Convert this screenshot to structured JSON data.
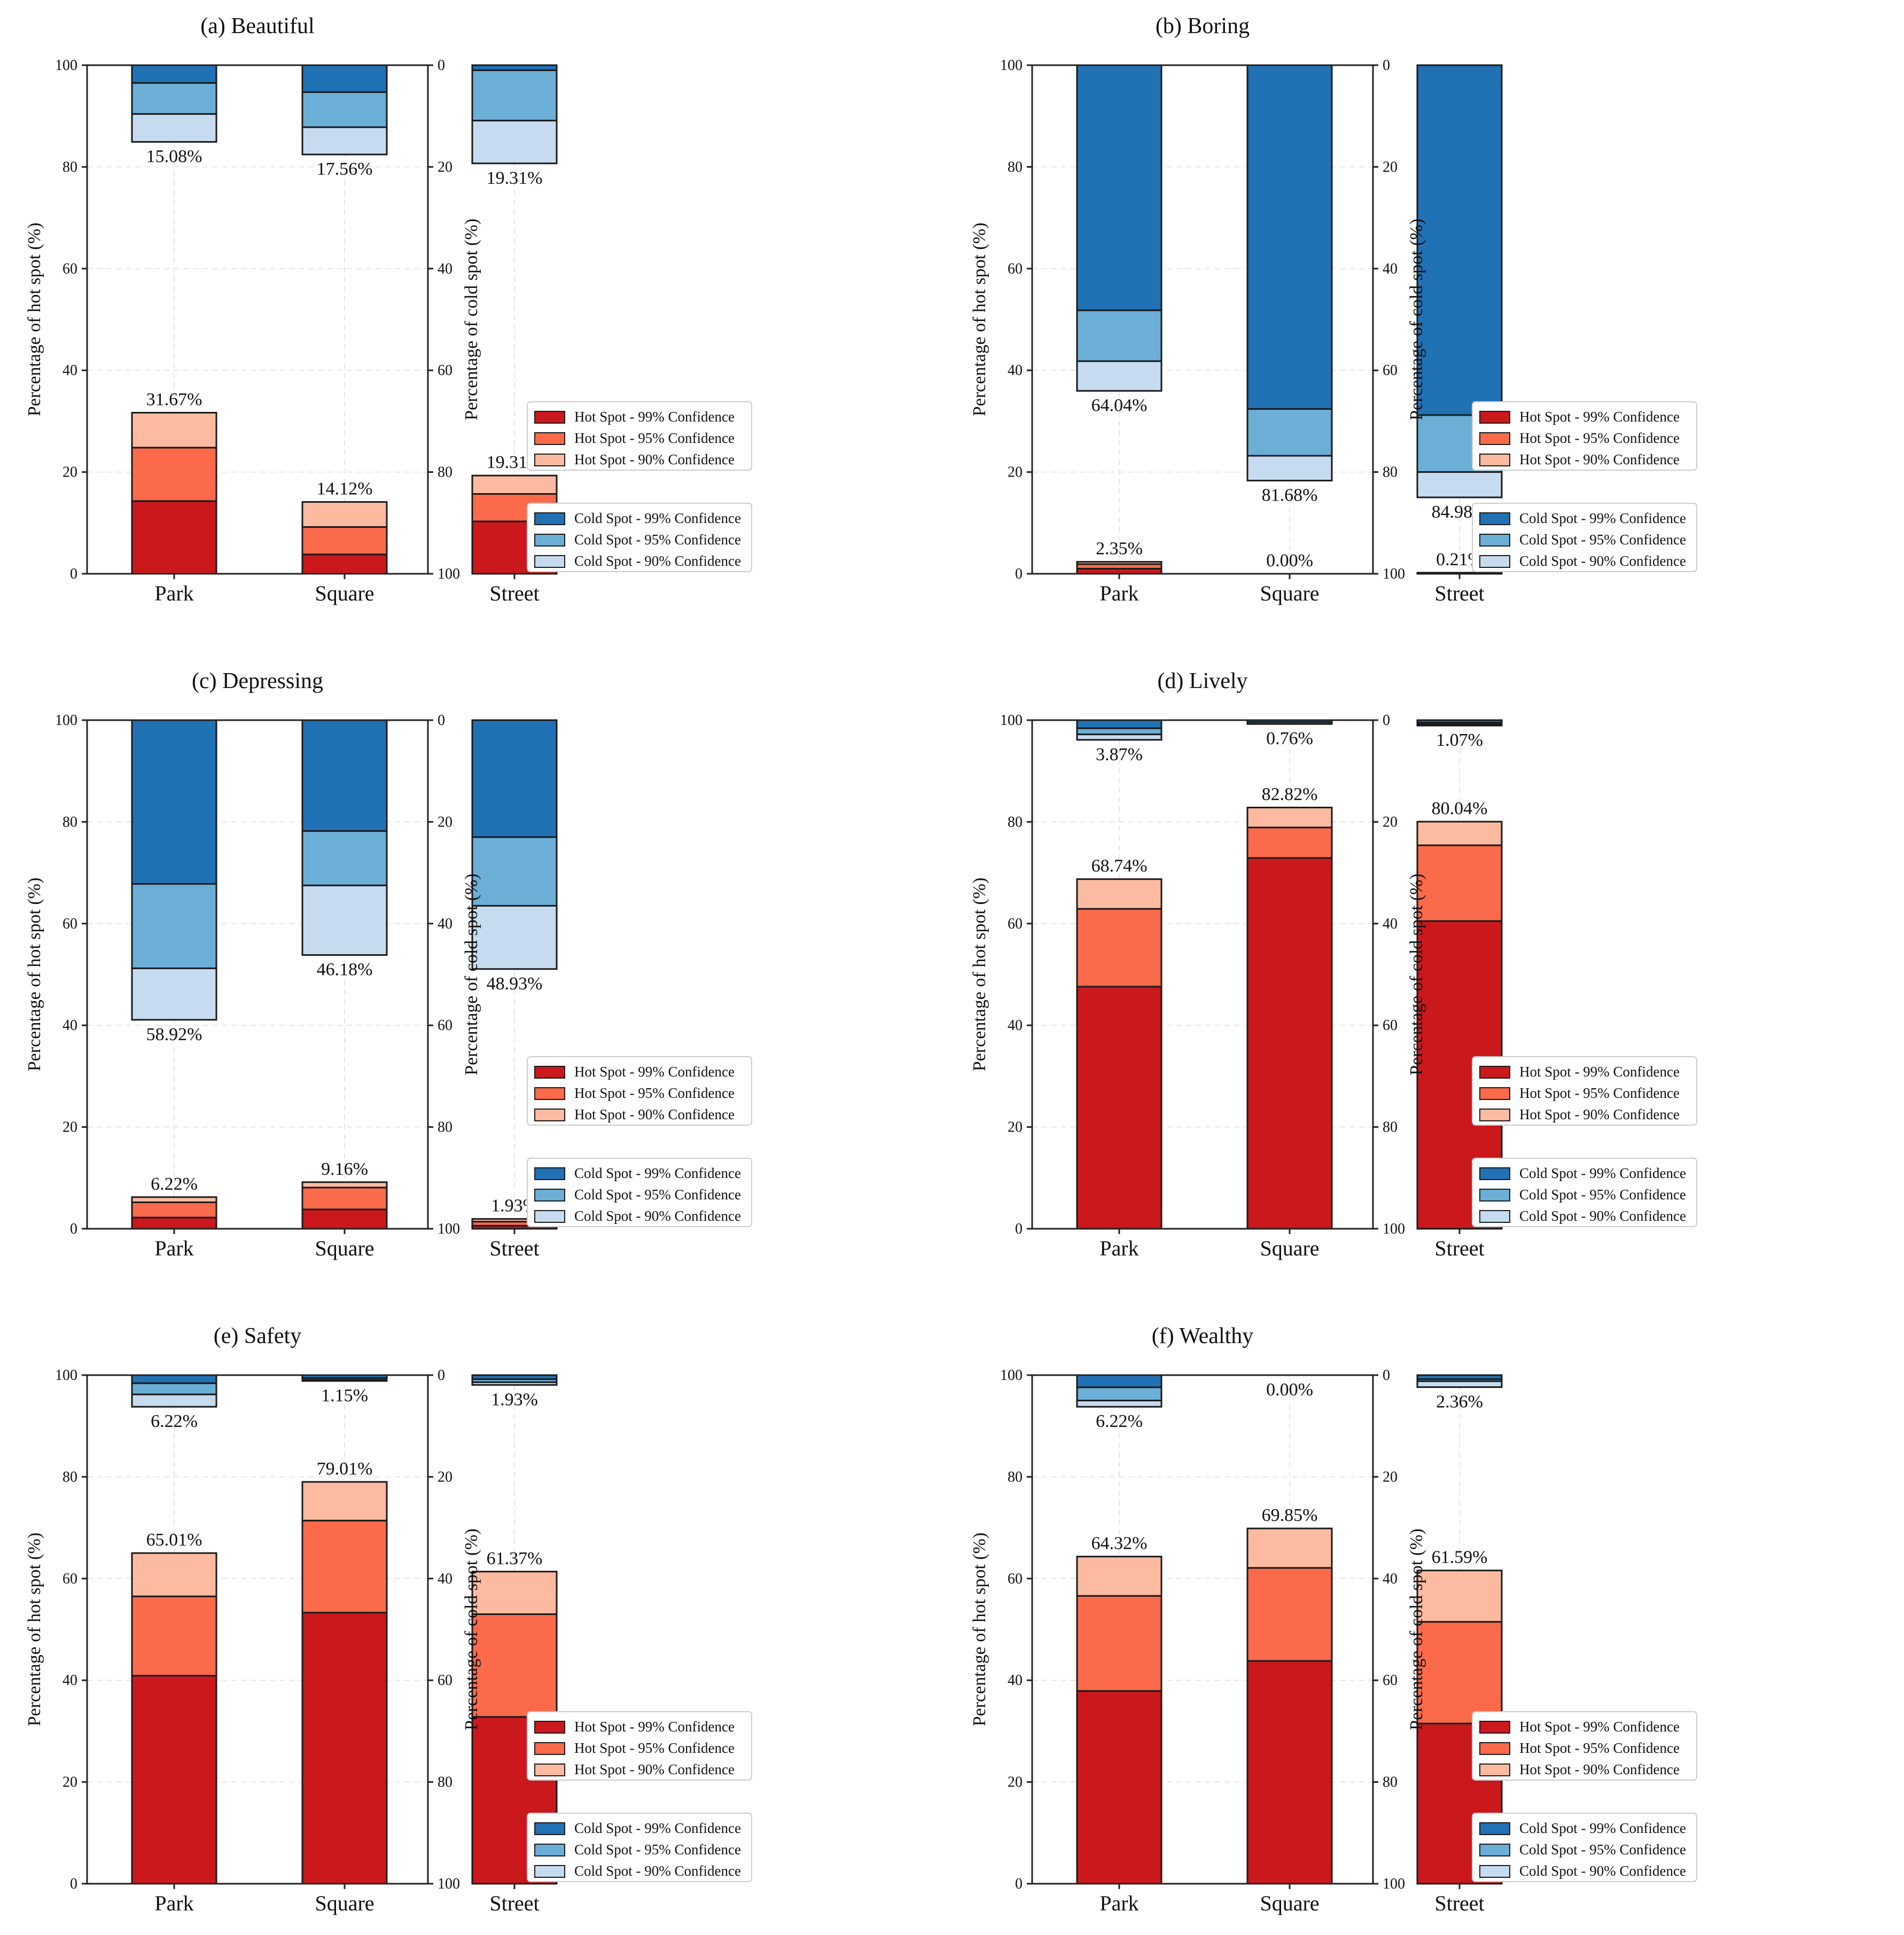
{
  "colors": {
    "hot99": "#cb181d",
    "hot95": "#fb6a4a",
    "hot90": "#fcbba1",
    "cold99": "#2171b5",
    "cold95": "#6baed6",
    "cold90": "#c6dbef"
  },
  "legend": {
    "hot": [
      "Hot Spot - 99% Confidence",
      "Hot Spot - 95% Confidence",
      "Hot Spot - 90% Confidence"
    ],
    "cold": [
      "Cold Spot - 99% Confidence",
      "Cold Spot - 95% Confidence",
      "Cold Spot - 90% Confidence"
    ]
  },
  "chart_data": [
    {
      "type": "bar",
      "title": "(a) Beautiful",
      "categories": [
        "Park",
        "Square",
        "Street"
      ],
      "ylabel": "Percentage of hot spot (%)",
      "y2label": "Percentage of cold spot (%)",
      "ylim": [
        0,
        100
      ],
      "y2lim": [
        100,
        0
      ],
      "yticks": [
        "0",
        "20",
        "40",
        "60",
        "80",
        "100"
      ],
      "y2ticks": [
        "0",
        "20",
        "40",
        "60",
        "80",
        "100"
      ],
      "hot": {
        "c99": [
          14.3,
          3.8,
          10.3
        ],
        "c95": [
          10.5,
          5.4,
          5.4
        ],
        "c90": [
          6.87,
          4.92,
          3.61
        ]
      },
      "cold": {
        "c99": [
          3.5,
          5.3,
          1.0
        ],
        "c95": [
          6.1,
          6.9,
          9.9
        ],
        "c90": [
          5.48,
          5.36,
          8.41
        ]
      },
      "hot_labels": [
        "31.67%",
        "14.12%",
        "19.31%"
      ],
      "cold_labels": [
        "15.08%",
        "17.56%",
        "19.31%"
      ]
    },
    {
      "type": "bar",
      "title": "(b) Boring",
      "categories": [
        "Park",
        "Square",
        "Street"
      ],
      "ylabel": "Percentage of hot spot (%)",
      "y2label": "Percentage of cold spot (%)",
      "ylim": [
        0,
        100
      ],
      "y2lim": [
        100,
        0
      ],
      "yticks": [
        "0",
        "20",
        "40",
        "60",
        "80",
        "100"
      ],
      "y2ticks": [
        "0",
        "20",
        "40",
        "60",
        "80",
        "100"
      ],
      "hot": {
        "c99": [
          1.0,
          0,
          0.1
        ],
        "c95": [
          0.9,
          0,
          0.06
        ],
        "c90": [
          0.45,
          0,
          0.05
        ]
      },
      "cold": {
        "c99": [
          48.2,
          67.6,
          68.8
        ],
        "c95": [
          10.0,
          9.2,
          11.2
        ],
        "c90": [
          5.84,
          4.88,
          4.98
        ]
      },
      "hot_labels": [
        "2.35%",
        "0.00%",
        "0.21%"
      ],
      "cold_labels": [
        "64.04%",
        "81.68%",
        "84.98%"
      ]
    },
    {
      "type": "bar",
      "title": "(c) Depressing",
      "categories": [
        "Park",
        "Square",
        "Street"
      ],
      "ylabel": "Percentage of hot spot (%)",
      "y2label": "Percentage of cold spot (%)",
      "ylim": [
        0,
        100
      ],
      "y2lim": [
        100,
        0
      ],
      "yticks": [
        "0",
        "20",
        "40",
        "60",
        "80",
        "100"
      ],
      "y2ticks": [
        "0",
        "20",
        "40",
        "60",
        "80",
        "100"
      ],
      "hot": {
        "c99": [
          2.2,
          3.8,
          0.6
        ],
        "c95": [
          3.0,
          4.3,
          0.8
        ],
        "c90": [
          1.02,
          1.06,
          0.53
        ]
      },
      "cold": {
        "c99": [
          32.2,
          21.8,
          23.0
        ],
        "c95": [
          16.6,
          10.7,
          13.5
        ],
        "c90": [
          10.12,
          13.68,
          12.43
        ]
      },
      "hot_labels": [
        "6.22%",
        "9.16%",
        "1.93%"
      ],
      "cold_labels": [
        "58.92%",
        "46.18%",
        "48.93%"
      ]
    },
    {
      "type": "bar",
      "title": "(d) Lively",
      "categories": [
        "Park",
        "Square",
        "Street"
      ],
      "ylabel": "Percentage of hot spot (%)",
      "y2label": "Percentage of cold spot (%)",
      "ylim": [
        0,
        100
      ],
      "y2lim": [
        100,
        0
      ],
      "yticks": [
        "0",
        "20",
        "40",
        "60",
        "80",
        "100"
      ],
      "y2ticks": [
        "0",
        "20",
        "40",
        "60",
        "80",
        "100"
      ],
      "hot": {
        "c99": [
          47.6,
          72.9,
          60.5
        ],
        "c95": [
          15.3,
          6.0,
          14.9
        ],
        "c90": [
          5.84,
          3.92,
          4.64
        ]
      },
      "cold": {
        "c99": [
          1.6,
          0.4,
          0.5
        ],
        "c95": [
          1.2,
          0.36,
          0.3
        ],
        "c90": [
          1.07,
          0,
          0.27
        ]
      },
      "hot_labels": [
        "68.74%",
        "82.82%",
        "80.04%"
      ],
      "cold_labels": [
        "3.87%",
        "0.76%",
        "1.07%"
      ]
    },
    {
      "type": "bar",
      "title": "(e) Safety",
      "categories": [
        "Park",
        "Square",
        "Street"
      ],
      "ylabel": "Percentage of hot spot (%)",
      "y2label": "Percentage of cold spot (%)",
      "ylim": [
        0,
        100
      ],
      "y2lim": [
        100,
        0
      ],
      "yticks": [
        "0",
        "20",
        "40",
        "60",
        "80",
        "100"
      ],
      "y2ticks": [
        "0",
        "20",
        "40",
        "60",
        "80",
        "100"
      ],
      "hot": {
        "c99": [
          40.9,
          53.3,
          32.8
        ],
        "c95": [
          15.6,
          18.1,
          20.2
        ],
        "c90": [
          8.51,
          7.61,
          8.37
        ]
      },
      "cold": {
        "c99": [
          1.6,
          0.6,
          0.8
        ],
        "c95": [
          2.2,
          0.35,
          0.6
        ],
        "c90": [
          2.42,
          0.2,
          0.53
        ]
      },
      "hot_labels": [
        "65.01%",
        "79.01%",
        "61.37%"
      ],
      "cold_labels": [
        "6.22%",
        "1.15%",
        "1.93%"
      ]
    },
    {
      "type": "bar",
      "title": "(f) Wealthy",
      "categories": [
        "Park",
        "Square",
        "Street"
      ],
      "ylabel": "Percentage of hot spot (%)",
      "y2label": "Percentage of cold spot (%)",
      "ylim": [
        0,
        100
      ],
      "y2lim": [
        100,
        0
      ],
      "yticks": [
        "0",
        "20",
        "40",
        "60",
        "80",
        "100"
      ],
      "y2ticks": [
        "0",
        "20",
        "40",
        "60",
        "80",
        "100"
      ],
      "hot": {
        "c99": [
          37.9,
          43.8,
          31.5
        ],
        "c95": [
          18.7,
          18.3,
          20.0
        ],
        "c90": [
          7.72,
          7.75,
          10.09
        ]
      },
      "cold": {
        "c99": [
          2.4,
          0,
          0.8
        ],
        "c95": [
          2.6,
          0,
          0.4
        ],
        "c90": [
          1.22,
          0,
          1.16
        ]
      },
      "hot_labels": [
        "64.32%",
        "69.85%",
        "61.59%"
      ],
      "cold_labels": [
        "6.22%",
        "0.00%",
        "2.36%"
      ]
    }
  ]
}
